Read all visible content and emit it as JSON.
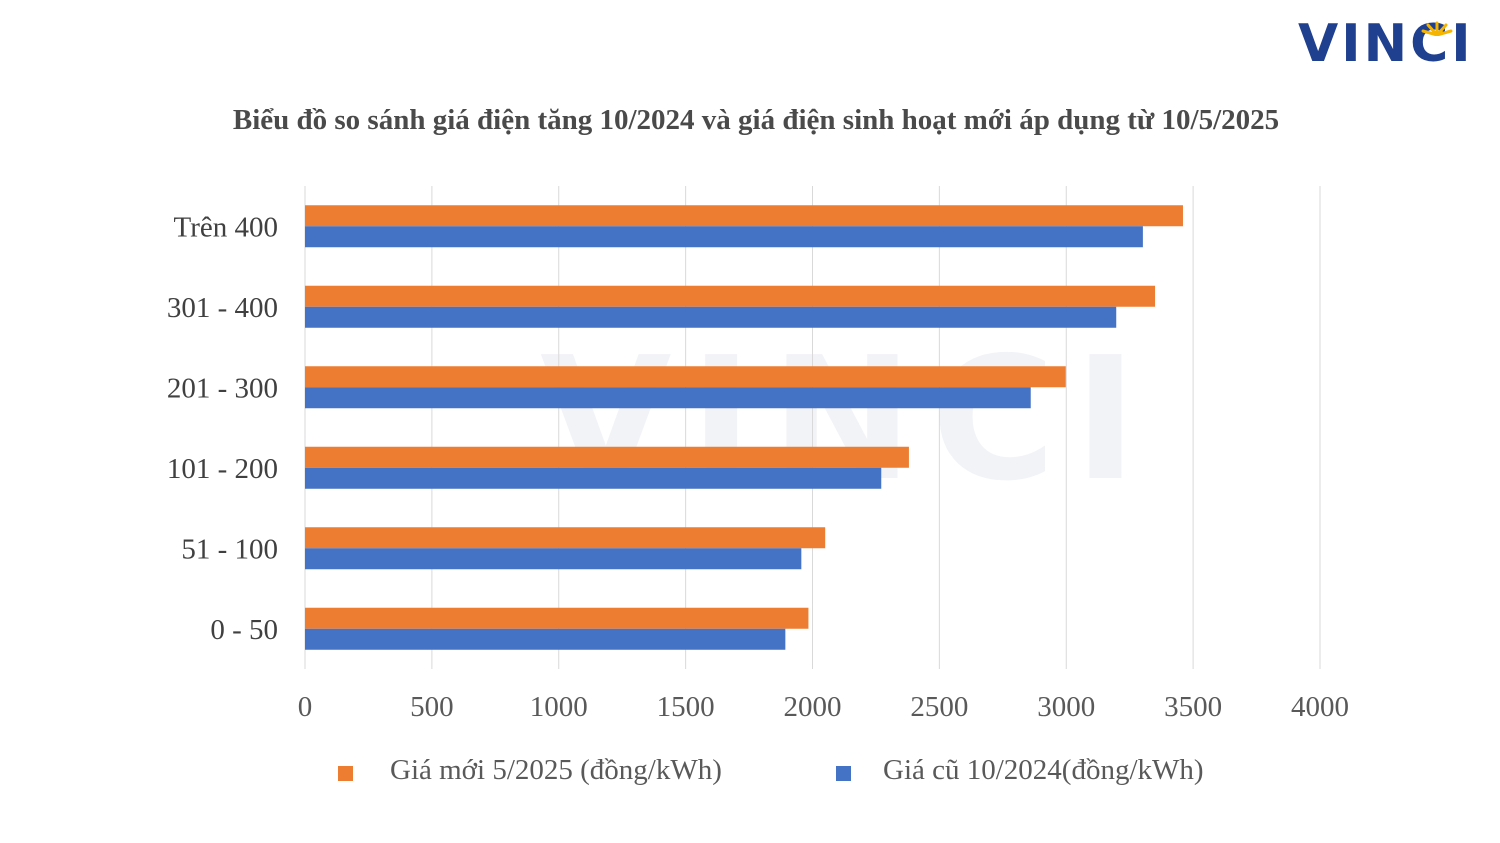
{
  "logo": {
    "text": "VINCI",
    "color": "#1f3f8f",
    "ray_color": "#f5b400"
  },
  "watermark": {
    "text": "VINCI"
  },
  "chart_data": {
    "type": "bar",
    "orientation": "horizontal",
    "title": "Biểu đồ so sánh giá điện tăng 10/2024 và giá điện sinh hoạt mới áp dụng từ 10/5/2025",
    "categories": [
      "0 - 50",
      "51 - 100",
      "101 - 200",
      "201 - 300",
      "301 - 400",
      "Trên 400"
    ],
    "series": [
      {
        "name": "Giá mới 5/2025 (đồng/kWh)",
        "color": "#ed7d31",
        "values": [
          1984,
          2050,
          2380,
          2998,
          3350,
          3460
        ]
      },
      {
        "name": "Giá cũ 10/2024(đồng/kWh)",
        "color": "#4472c4",
        "values": [
          1893,
          1956,
          2271,
          2860,
          3197,
          3302
        ]
      }
    ],
    "xlim": [
      0,
      4000
    ],
    "xticks": [
      0,
      500,
      1000,
      1500,
      2000,
      2500,
      3000,
      3500,
      4000
    ],
    "xlabel": "",
    "ylabel": "",
    "grid": true,
    "legend_position": "bottom"
  }
}
